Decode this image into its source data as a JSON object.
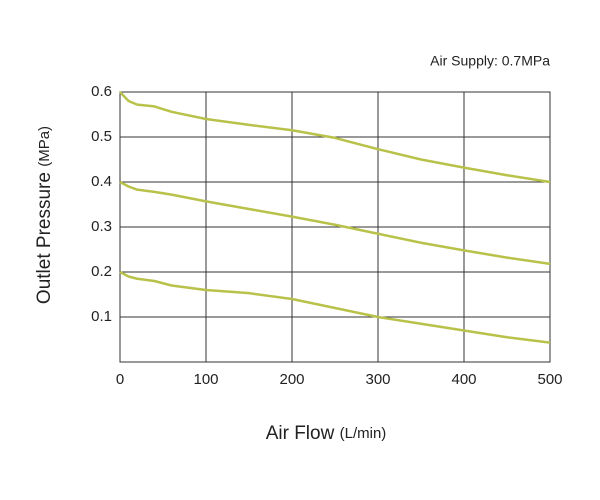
{
  "chart_data": {
    "type": "line",
    "annotation": "Air Supply: 0.7MPa",
    "x_label": "Air Flow",
    "x_unit": "(L/min)",
    "y_label": "Outlet Pressure",
    "y_unit": "(MPa)",
    "x": [
      0,
      10,
      20,
      40,
      60,
      100,
      150,
      200,
      250,
      300,
      350,
      400,
      450,
      500
    ],
    "series": [
      {
        "color": "#b8c24a",
        "values": [
          0.6,
          0.58,
          0.572,
          0.568,
          0.556,
          0.54,
          0.527,
          0.515,
          0.498,
          0.473,
          0.45,
          0.432,
          0.415,
          0.4
        ]
      },
      {
        "color": "#b8c24a",
        "values": [
          0.4,
          0.39,
          0.383,
          0.378,
          0.372,
          0.357,
          0.34,
          0.323,
          0.305,
          0.285,
          0.265,
          0.248,
          0.232,
          0.218
        ]
      },
      {
        "color": "#b8c24a",
        "values": [
          0.2,
          0.19,
          0.185,
          0.18,
          0.17,
          0.16,
          0.153,
          0.14,
          0.12,
          0.1,
          0.085,
          0.07,
          0.055,
          0.043
        ]
      }
    ],
    "xlim": [
      0,
      500
    ],
    "ylim": [
      0,
      0.6
    ],
    "xticks": [
      0,
      100,
      200,
      300,
      400,
      500
    ],
    "yticks": [
      0.1,
      0.2,
      0.3,
      0.4,
      0.5,
      0.6
    ],
    "grid": true
  }
}
